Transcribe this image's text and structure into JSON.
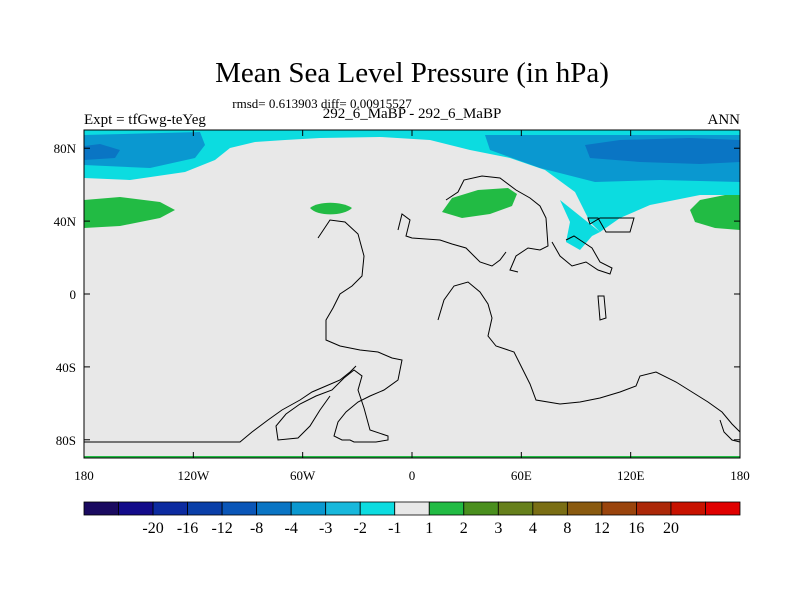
{
  "chart_data": {
    "type": "heatmap",
    "title": "Mean Sea Level Pressure (in hPa)",
    "stats_text": "rmsd= 0.613903 diff= 0.00915527",
    "left_label": "Expt = tfGwg-teYeg",
    "center_label": "292_6_MaBP - 292_6_MaBP",
    "right_label": "ANN",
    "xlim": [
      -180,
      180
    ],
    "ylim": [
      -90,
      90
    ],
    "x_ticks": [
      {
        "value": -180,
        "label": "180"
      },
      {
        "value": -120,
        "label": "120W"
      },
      {
        "value": -60,
        "label": "60W"
      },
      {
        "value": 0,
        "label": "0"
      },
      {
        "value": 60,
        "label": "60E"
      },
      {
        "value": 120,
        "label": "120E"
      },
      {
        "value": 180,
        "label": "180"
      }
    ],
    "y_ticks": [
      {
        "value": 80,
        "label": "80N"
      },
      {
        "value": 40,
        "label": "40N"
      },
      {
        "value": 0,
        "label": "0"
      },
      {
        "value": -40,
        "label": "40S"
      },
      {
        "value": -80,
        "label": "80S"
      }
    ],
    "colorbar": {
      "colors": [
        "#1a0a60",
        "#130b8a",
        "#0c2ba0",
        "#0a3fa8",
        "#0a56b8",
        "#0a75c4",
        "#0a98d0",
        "#18b8dc",
        "#0cdce0",
        "#e8e8e8",
        "#22bb44",
        "#4a8f1e",
        "#66801c",
        "#7a6e14",
        "#8a5a10",
        "#9a440c",
        "#ac2808",
        "#c81200",
        "#e00000"
      ],
      "labels": [
        "-20",
        "-16",
        "-12",
        "-8",
        "-4",
        "-3",
        "-2",
        "-1",
        "1",
        "2",
        "3",
        "4",
        "8",
        "12",
        "16",
        "20"
      ]
    },
    "field_colors": {
      "neutral": "#e8e8e8",
      "neg_1_2": "#0cdce0",
      "neg_2_3": "#0a98d0",
      "neg_3_4": "#0a75c4",
      "pos_1_2": "#22bb44"
    }
  }
}
